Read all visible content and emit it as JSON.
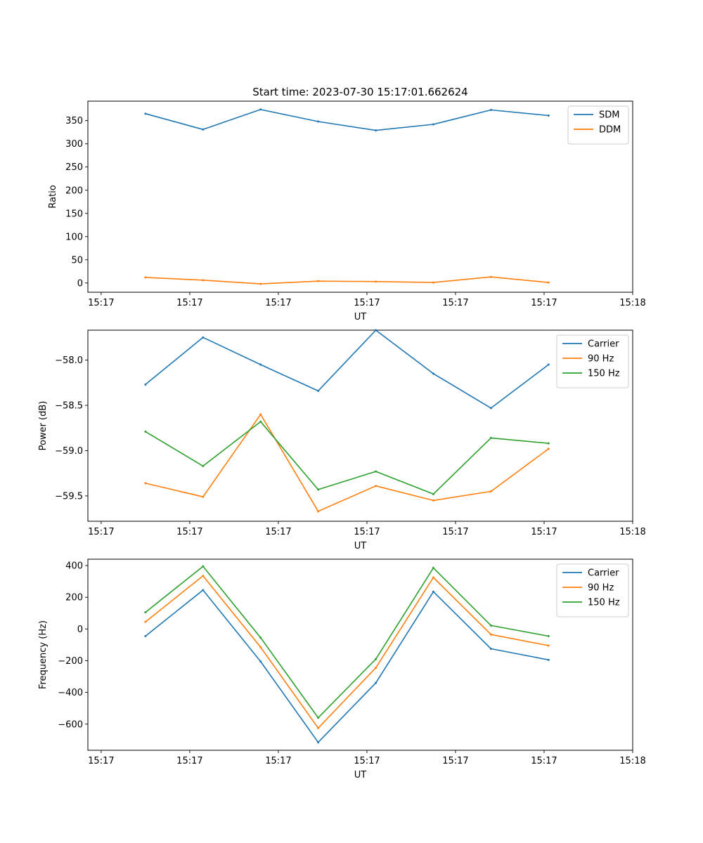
{
  "figure_title": "Start time: 2023-07-30 15:17:01.662624",
  "chart_data": [
    {
      "type": "line",
      "title": "Start time: 2023-07-30 15:17:01.662624",
      "xlabel": "UT",
      "ylabel": "Ratio",
      "x_tick_labels": [
        "15:17",
        "15:17",
        "15:17",
        "15:17",
        "15:17",
        "15:17",
        "15:18"
      ],
      "xlim": [
        -0.3,
        12.0
      ],
      "ylim": [
        -20,
        392
      ],
      "y_ticks": [
        0,
        50,
        100,
        150,
        200,
        250,
        300,
        350
      ],
      "y_tick_labels": [
        "0",
        "50",
        "100",
        "150",
        "200",
        "250",
        "300",
        "350"
      ],
      "legend_position": "upper right",
      "x": [
        1,
        2.3,
        3.6,
        4.9,
        6.2,
        7.5,
        8.8,
        10.1
      ],
      "series": [
        {
          "name": "SDM",
          "color": "#1f77b4",
          "values": [
            365,
            331,
            374,
            348,
            329,
            342,
            373,
            361
          ]
        },
        {
          "name": "DDM",
          "color": "#ff7f0e",
          "values": [
            12,
            6,
            -2,
            4,
            3,
            1,
            13,
            1
          ]
        }
      ]
    },
    {
      "type": "line",
      "title": "",
      "xlabel": "UT",
      "ylabel": "Power (dB)",
      "x_tick_labels": [
        "15:17",
        "15:17",
        "15:17",
        "15:17",
        "15:17",
        "15:17",
        "15:18"
      ],
      "xlim": [
        -0.3,
        12.0
      ],
      "ylim": [
        -59.78,
        -57.67
      ],
      "y_ticks": [
        -58.0,
        -58.5,
        -59.0,
        -59.5
      ],
      "y_tick_labels": [
        "−58.0",
        "−58.5",
        "−59.0",
        "−59.5"
      ],
      "legend_position": "upper right",
      "x": [
        1,
        2.3,
        3.6,
        4.9,
        6.2,
        7.5,
        8.8,
        10.1
      ],
      "series": [
        {
          "name": "Carrier",
          "color": "#1f77b4",
          "values": [
            -58.27,
            -57.75,
            -58.05,
            -58.34,
            -57.67,
            -58.15,
            -58.53,
            -58.05
          ]
        },
        {
          "name": "90 Hz",
          "color": "#ff7f0e",
          "values": [
            -59.36,
            -59.51,
            -58.6,
            -59.67,
            -59.39,
            -59.55,
            -59.45,
            -58.98
          ]
        },
        {
          "name": "150 Hz",
          "color": "#2ca02c",
          "values": [
            -58.79,
            -59.17,
            -58.68,
            -59.43,
            -59.23,
            -59.48,
            -58.86,
            -58.92
          ]
        }
      ]
    },
    {
      "type": "line",
      "title": "",
      "xlabel": "UT",
      "ylabel": "Frequency (Hz)",
      "x_tick_labels": [
        "15:17",
        "15:17",
        "15:17",
        "15:17",
        "15:17",
        "15:17",
        "15:18"
      ],
      "xlim": [
        -0.3,
        12.0
      ],
      "ylim": [
        -765,
        440
      ],
      "y_ticks": [
        400,
        200,
        0,
        -200,
        -400,
        -600
      ],
      "y_tick_labels": [
        "400",
        "200",
        "0",
        "−200",
        "−400",
        "−600"
      ],
      "legend_position": "upper right",
      "x": [
        1,
        2.3,
        3.6,
        4.9,
        6.2,
        7.5,
        8.8,
        10.1
      ],
      "series": [
        {
          "name": "Carrier",
          "color": "#1f77b4",
          "values": [
            -45,
            245,
            -205,
            -715,
            -340,
            235,
            -125,
            -195
          ]
        },
        {
          "name": "90 Hz",
          "color": "#ff7f0e",
          "values": [
            45,
            335,
            -115,
            -625,
            -245,
            325,
            -35,
            -105
          ]
        },
        {
          "name": "150 Hz",
          "color": "#2ca02c",
          "values": [
            105,
            395,
            -55,
            -560,
            -190,
            385,
            22,
            -45
          ]
        }
      ]
    }
  ]
}
